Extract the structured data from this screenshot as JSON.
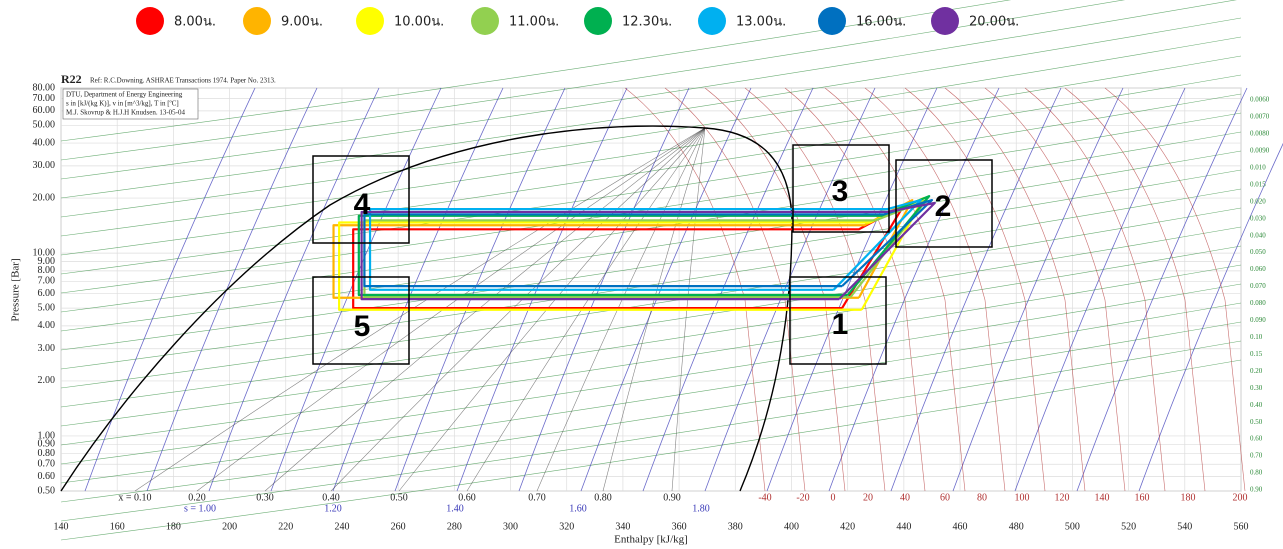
{
  "chart_data": {
    "type": "line",
    "title": "R22",
    "subtitle": "Ref: R.C.Downing. ASHRAE Transactions 1974. Paper No. 2313.",
    "info": [
      "DTU, Department of Energy Engineering",
      "s in [kJ/(kg K)], v in [m^3/kg], T in [ºC]",
      "M.J. Skovrup & H.J.H Knudsen. 13-05-04"
    ],
    "x_label": "Enthalpy [kJ/kg]",
    "y_label": "Pressure [Bar]",
    "log_y": true,
    "grid": true,
    "xlim": [
      140,
      560
    ],
    "ylim": [
      0.5,
      80
    ],
    "xticks": [
      140,
      160,
      180,
      200,
      220,
      240,
      260,
      280,
      300,
      320,
      340,
      360,
      380,
      400,
      420,
      440,
      460,
      480,
      500,
      520,
      540,
      560
    ],
    "yticks": [
      {
        "value": 0.5,
        "label": "0.50"
      },
      {
        "value": 0.6,
        "label": "0.60"
      },
      {
        "value": 0.7,
        "label": "0.70"
      },
      {
        "value": 0.8,
        "label": "0.80"
      },
      {
        "value": 0.9,
        "label": "0.90"
      },
      {
        "value": 1,
        "label": "1.00"
      },
      {
        "value": 2,
        "label": "2.00"
      },
      {
        "value": 3,
        "label": "3.00"
      },
      {
        "value": 4,
        "label": "4.00"
      },
      {
        "value": 5,
        "label": "5.00"
      },
      {
        "value": 6,
        "label": "6.00"
      },
      {
        "value": 7,
        "label": "7.00"
      },
      {
        "value": 8,
        "label": "8.00"
      },
      {
        "value": 9,
        "label": "9.00"
      },
      {
        "value": 10,
        "label": "10.00"
      },
      {
        "value": 20,
        "label": "20.00"
      },
      {
        "value": 30,
        "label": "30.00"
      },
      {
        "value": 40,
        "label": "40.00"
      },
      {
        "value": 50,
        "label": "50.00"
      },
      {
        "value": 60,
        "label": "60.00"
      },
      {
        "value": 70,
        "label": "70.00"
      },
      {
        "value": 80,
        "label": "80.00"
      }
    ],
    "quality_labels": [
      "x = 0.10",
      "0.20",
      "0.30",
      "0.40",
      "0.50",
      "0.60",
      "0.70",
      "0.80",
      "0.90"
    ],
    "entropy_labels": [
      "s = 1.00",
      "1.20",
      "1.40",
      "1.60",
      "1.80"
    ],
    "temperature_labels": [
      "-40",
      "-20",
      "0",
      "20",
      "40",
      "60",
      "80",
      "100",
      "120",
      "140",
      "160",
      "180",
      "200"
    ],
    "volume_labels": [
      "0.0060",
      "0.0070",
      "0.0080",
      "0.0090",
      "0.010",
      "0.015",
      "0.020",
      "0.030",
      "0.040",
      "0.050",
      "0.060",
      "0.070",
      "0.080",
      "0.090",
      "0.10",
      "0.15",
      "0.20",
      "0.30",
      "0.40",
      "0.50",
      "0.60",
      "0.70",
      "0.80",
      "0.90"
    ],
    "cycle_points": [
      "1",
      "2",
      "3",
      "4",
      "5"
    ],
    "series": [
      {
        "name": "8.00น.",
        "color": "#ff0000",
        "x": [
          418,
          440,
          424,
          244,
          244,
          418
        ],
        "values": [
          5.0,
          18.3,
          13.5,
          13.5,
          5.0,
          5.0
        ]
      },
      {
        "name": "9.00น.",
        "color": "#ffb400",
        "x": [
          424,
          443,
          426,
          237,
          237,
          424
        ],
        "values": [
          5.7,
          19.5,
          14.2,
          14.2,
          5.7,
          5.7
        ]
      },
      {
        "name": "10.00น.",
        "color": "#ffff00",
        "x": [
          425,
          447,
          428,
          239,
          239,
          425
        ],
        "values": [
          4.9,
          20,
          14.7,
          14.7,
          4.9,
          4.9
        ]
      },
      {
        "name": "11.00น.",
        "color": "#92d050",
        "x": [
          421,
          448,
          430,
          248,
          248,
          421
        ],
        "values": [
          5.75,
          19.5,
          15.1,
          15.1,
          5.75,
          5.75
        ]
      },
      {
        "name": "12.30น.",
        "color": "#00b050",
        "x": [
          420,
          449,
          432,
          246,
          246,
          420
        ],
        "values": [
          5.9,
          20.5,
          16.0,
          16.0,
          5.9,
          5.9
        ]
      },
      {
        "name": "13.00น.",
        "color": "#00b0f0",
        "x": [
          415,
          446,
          434,
          250,
          250,
          415
        ],
        "values": [
          6.3,
          19.5,
          17.4,
          17.4,
          6.3,
          6.3
        ]
      },
      {
        "name": "16.00น.",
        "color": "#0070c0",
        "x": [
          418,
          450,
          433,
          248,
          248,
          418
        ],
        "values": [
          6.6,
          19.5,
          16.3,
          16.3,
          6.6,
          6.6
        ]
      },
      {
        "name": "20.00น.",
        "color": "#7030a0",
        "x": [
          417,
          451,
          434,
          247,
          247,
          417
        ],
        "values": [
          5.6,
          18.8,
          16.8,
          16.8,
          5.6,
          5.6
        ]
      }
    ]
  }
}
